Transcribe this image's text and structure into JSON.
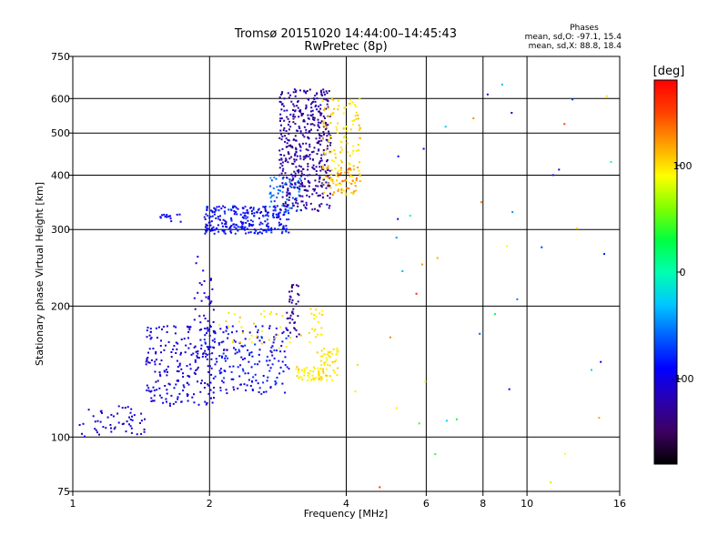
{
  "chart_data": {
    "type": "scatter",
    "title": "Tromsø 20151020 14:44:00–14:45:43",
    "subtitle": "RwPretec (8p)",
    "xlabel": "Frequency [MHz]",
    "ylabel": "Stationary phase Virtual Height [km]",
    "x_scale": "log",
    "y_scale": "log",
    "xlim": [
      1,
      16
    ],
    "ylim": [
      75,
      750
    ],
    "x_ticks": [
      1,
      2,
      4,
      6,
      8,
      10,
      16
    ],
    "y_ticks": [
      75,
      100,
      200,
      300,
      400,
      500,
      600,
      750
    ],
    "x_grid": [
      2,
      4,
      6,
      8,
      10
    ],
    "y_grid": [
      100,
      200,
      300,
      400,
      500,
      600
    ],
    "grid": true,
    "phases_header": "Phases",
    "stats_o": "mean, sd,O: -97.1, 15.4",
    "stats_x": "mean, sd,X:  88.8, 18.4",
    "colorbar": {
      "label": "[deg]",
      "range": [
        -180,
        180
      ],
      "ticks": [
        100,
        0,
        -100
      ],
      "colors": [
        "#000000",
        "#3c0060",
        "#2a00b0",
        "#0000ff",
        "#0060ff",
        "#00c8ff",
        "#00ffb0",
        "#00ff40",
        "#80ff00",
        "#ffff00",
        "#ffa000",
        "#ff4000",
        "#ff0000"
      ]
    },
    "clusters": [
      {
        "f": [
          1.02,
          1.45
        ],
        "h": [
          100,
          118
        ],
        "phase": [
          -115,
          -100
        ],
        "n": 55
      },
      {
        "f": [
          1.45,
          2.05
        ],
        "h": [
          118,
          180
        ],
        "phase": [
          -115,
          -95
        ],
        "n": 190
      },
      {
        "f": [
          1.95,
          3.0
        ],
        "h": [
          125,
          180
        ],
        "phase": [
          -120,
          -70
        ],
        "n": 200
      },
      {
        "f": [
          1.85,
          2.05
        ],
        "h": [
          150,
          260
        ],
        "phase": [
          -115,
          -100
        ],
        "n": 45
      },
      {
        "f": [
          2.1,
          3.2
        ],
        "h": [
          160,
          195
        ],
        "phase": [
          90,
          110
        ],
        "n": 35
      },
      {
        "f": [
          2.95,
          3.15
        ],
        "h": [
          170,
          225
        ],
        "phase": [
          -140,
          -120
        ],
        "n": 40
      },
      {
        "f": [
          3.1,
          3.5
        ],
        "h": [
          135,
          145
        ],
        "phase": [
          85,
          110
        ],
        "n": 40
      },
      {
        "f": [
          3.45,
          3.85
        ],
        "h": [
          135,
          160
        ],
        "phase": [
          85,
          110
        ],
        "n": 55
      },
      {
        "f": [
          3.3,
          3.55
        ],
        "h": [
          165,
          200
        ],
        "phase": [
          85,
          110
        ],
        "n": 20
      },
      {
        "f": [
          1.95,
          3.0
        ],
        "h": [
          293,
          340
        ],
        "phase": [
          -110,
          -70
        ],
        "n": 260
      },
      {
        "f": [
          2.7,
          3.2
        ],
        "h": [
          330,
          400
        ],
        "phase": [
          -70,
          -40
        ],
        "n": 60
      },
      {
        "f": [
          2.85,
          3.7
        ],
        "h": [
          330,
          630
        ],
        "phase": [
          -140,
          -110
        ],
        "n": 470
      },
      {
        "f": [
          3.55,
          4.3
        ],
        "h": [
          360,
          600
        ],
        "phase": [
          90,
          115
        ],
        "n": 150
      },
      {
        "f": [
          3.6,
          4.3
        ],
        "h": [
          360,
          420
        ],
        "phase": [
          120,
          140
        ],
        "n": 30
      },
      {
        "f": [
          1.55,
          1.75
        ],
        "h": [
          312,
          325
        ],
        "phase": [
          -100,
          -90
        ],
        "n": 15
      },
      {
        "f": [
          4.0,
          16.0
        ],
        "h": [
          76,
          650
        ],
        "phase": [
          -120,
          160
        ],
        "n": 45
      }
    ]
  }
}
